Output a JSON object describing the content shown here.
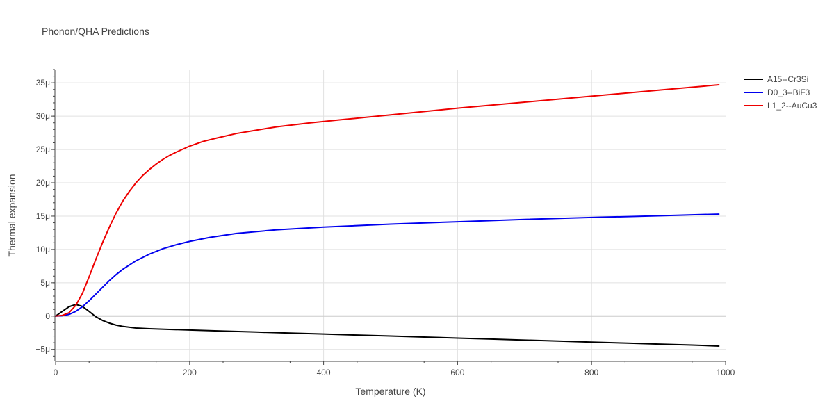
{
  "chart_data": {
    "type": "line",
    "title": "Phonon/QHA Predictions",
    "xlabel": "Temperature (K)",
    "ylabel": "Thermal expansion",
    "xlim": [
      0,
      1000
    ],
    "ylim": [
      -6.8e-06,
      3.7e-05
    ],
    "x_ticks": [
      0,
      200,
      400,
      600,
      800,
      1000
    ],
    "x_tick_labels": [
      "0",
      "200",
      "400",
      "600",
      "800",
      "1000"
    ],
    "y_ticks": [
      -5e-06,
      0,
      5e-06,
      1e-05,
      1.5e-05,
      2e-05,
      2.5e-05,
      3e-05,
      3.5e-05
    ],
    "y_tick_labels": [
      "−5μ",
      "0",
      "5μ",
      "10μ",
      "15μ",
      "20μ",
      "25μ",
      "30μ",
      "35μ"
    ],
    "grid": true,
    "legend_position": "top-right",
    "series": [
      {
        "name": "A15--Cr3Si",
        "color": "#000000",
        "x": [
          0,
          10,
          20,
          30,
          40,
          50,
          60,
          70,
          80,
          90,
          100,
          120,
          140,
          170,
          200,
          250,
          300,
          350,
          400,
          450,
          500,
          550,
          600,
          650,
          700,
          750,
          800,
          850,
          900,
          950,
          990
        ],
        "y": [
          0,
          7e-07,
          1.4e-06,
          1.75e-06,
          1.45e-06,
          7e-07,
          -1e-07,
          -6.5e-07,
          -1.05e-06,
          -1.35e-06,
          -1.55e-06,
          -1.8e-06,
          -1.9e-06,
          -2e-06,
          -2.1e-06,
          -2.25e-06,
          -2.4e-06,
          -2.55e-06,
          -2.7e-06,
          -2.85e-06,
          -3e-06,
          -3.15e-06,
          -3.3e-06,
          -3.45e-06,
          -3.6e-06,
          -3.75e-06,
          -3.9e-06,
          -4.05e-06,
          -4.2e-06,
          -4.35e-06,
          -4.5e-06
        ]
      },
      {
        "name": "D0_3--BiF3",
        "color": "#0000ee",
        "x": [
          0,
          10,
          20,
          30,
          40,
          50,
          60,
          70,
          80,
          90,
          100,
          120,
          140,
          160,
          180,
          200,
          230,
          270,
          330,
          400,
          500,
          600,
          700,
          800,
          900,
          990
        ],
        "y": [
          0,
          5e-08,
          2.5e-07,
          7e-07,
          1.4e-06,
          2.3e-06,
          3.3e-06,
          4.3e-06,
          5.3e-06,
          6.2e-06,
          7e-06,
          8.3e-06,
          9.3e-06,
          1.01e-05,
          1.07e-05,
          1.12e-05,
          1.18e-05,
          1.24e-05,
          1.295e-05,
          1.335e-05,
          1.38e-05,
          1.415e-05,
          1.45e-05,
          1.48e-05,
          1.505e-05,
          1.53e-05
        ]
      },
      {
        "name": "L1_2--AuCu3",
        "color": "#ee0000",
        "x": [
          0,
          10,
          20,
          30,
          40,
          50,
          60,
          70,
          80,
          90,
          100,
          110,
          120,
          130,
          140,
          150,
          160,
          170,
          180,
          200,
          220,
          240,
          270,
          300,
          330,
          380,
          430,
          500,
          600,
          700,
          800,
          900,
          990
        ],
        "y": [
          0,
          1e-07,
          5e-07,
          1.6e-06,
          3.4e-06,
          5.9e-06,
          8.5e-06,
          1.1e-05,
          1.33e-05,
          1.54e-05,
          1.72e-05,
          1.87e-05,
          2e-05,
          2.11e-05,
          2.2e-05,
          2.28e-05,
          2.35e-05,
          2.41e-05,
          2.46e-05,
          2.55e-05,
          2.62e-05,
          2.67e-05,
          2.74e-05,
          2.79e-05,
          2.84e-05,
          2.9e-05,
          2.95e-05,
          3.02e-05,
          3.12e-05,
          3.21e-05,
          3.3e-05,
          3.39e-05,
          3.47e-05
        ]
      }
    ]
  }
}
